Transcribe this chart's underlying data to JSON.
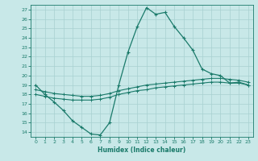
{
  "xlabel": "Humidex (Indice chaleur)",
  "bg_color": "#c8e8e8",
  "line_color": "#1a7a6a",
  "grid_color": "#a8d0d0",
  "xlim": [
    -0.5,
    23.5
  ],
  "ylim": [
    13.5,
    27.5
  ],
  "xticks": [
    0,
    1,
    2,
    3,
    4,
    5,
    6,
    7,
    8,
    9,
    10,
    11,
    12,
    13,
    14,
    15,
    16,
    17,
    18,
    19,
    20,
    21,
    22,
    23
  ],
  "yticks": [
    14,
    15,
    16,
    17,
    18,
    19,
    20,
    21,
    22,
    23,
    24,
    25,
    26,
    27
  ],
  "line1_x": [
    0,
    1,
    2,
    3,
    4,
    5,
    6,
    7,
    8,
    9,
    10,
    11,
    12,
    13,
    14,
    15,
    16,
    17,
    18,
    19,
    20,
    21,
    22,
    23
  ],
  "line1_y": [
    19.0,
    18.0,
    17.2,
    16.3,
    15.2,
    14.5,
    13.8,
    13.7,
    15.0,
    19.0,
    22.5,
    25.2,
    27.2,
    26.5,
    26.7,
    25.2,
    24.0,
    22.7,
    20.7,
    20.2,
    20.0,
    19.2,
    19.3,
    19.0
  ],
  "line2_x": [
    0,
    1,
    2,
    3,
    4,
    5,
    6,
    7,
    8,
    9,
    10,
    11,
    12,
    13,
    14,
    15,
    16,
    17,
    18,
    19,
    20,
    21,
    22,
    23
  ],
  "line2_y": [
    18.0,
    17.8,
    17.6,
    17.5,
    17.4,
    17.4,
    17.4,
    17.5,
    17.7,
    18.0,
    18.2,
    18.4,
    18.5,
    18.7,
    18.8,
    18.9,
    19.0,
    19.1,
    19.2,
    19.3,
    19.3,
    19.2,
    19.2,
    19.0
  ],
  "line3_x": [
    0,
    1,
    2,
    3,
    4,
    5,
    6,
    7,
    8,
    9,
    10,
    11,
    12,
    13,
    14,
    15,
    16,
    17,
    18,
    19,
    20,
    21,
    22,
    23
  ],
  "line3_y": [
    18.5,
    18.3,
    18.1,
    18.0,
    17.9,
    17.8,
    17.8,
    17.9,
    18.1,
    18.4,
    18.6,
    18.8,
    19.0,
    19.1,
    19.2,
    19.3,
    19.4,
    19.5,
    19.6,
    19.7,
    19.7,
    19.6,
    19.5,
    19.3
  ]
}
